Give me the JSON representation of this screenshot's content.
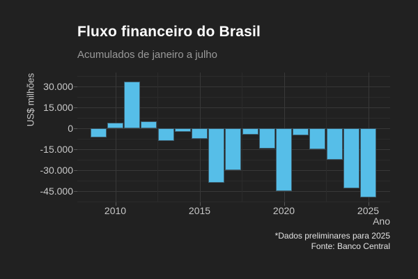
{
  "header": {
    "title": "Fluxo financeiro do Brasil",
    "subtitle": "Acumulados de janeiro a julho"
  },
  "footer": {
    "note": "*Dados preliminares para 2025",
    "source": "Fonte: Banco Central"
  },
  "chart_data": {
    "type": "bar",
    "title": "Fluxo financeiro do Brasil",
    "subtitle": "Acumulados de janeiro a julho",
    "xlabel": "Ano",
    "ylabel": "US$ milhões",
    "unit": "US$ milhões",
    "categories": [
      2009,
      2010,
      2011,
      2012,
      2013,
      2014,
      2015,
      2016,
      2017,
      2018,
      2019,
      2020,
      2021,
      2022,
      2023,
      2024,
      2025
    ],
    "values": [
      -6300,
      3800,
      33500,
      4900,
      -8900,
      -2600,
      -7300,
      -38900,
      -30100,
      -4500,
      -14300,
      -44900,
      -4800,
      -14900,
      -22400,
      -43200,
      -49500
    ],
    "x_ticks": [
      2010,
      2015,
      2020,
      2025
    ],
    "x_tick_labels": [
      "2010",
      "2015",
      "2020",
      "2025"
    ],
    "y_ticks": [
      30000,
      15000,
      0,
      -15000,
      -30000,
      -45000
    ],
    "y_tick_labels": [
      "30.000",
      "15.000",
      "0",
      "-15.000",
      "-30.000",
      "-45.000"
    ],
    "y_minor_step": 7500,
    "xlim": [
      2007.75,
      2026.3
    ],
    "ylim": [
      -53000,
      40000
    ],
    "grid": true,
    "legend": false,
    "bar_width_years": 0.95,
    "colors": {
      "background": "#212121",
      "bar_fill": "#56BEE8",
      "bar_border": "#3D5F70",
      "grid_major": "#383838",
      "grid_minor": "#2b2b2b",
      "title_text": "#ffffff",
      "subtitle_text": "#9a9a9a",
      "tick_text": "#c8c8c8",
      "footer_text": "#e3e3e3"
    },
    "annotations": [
      "*Dados preliminares para 2025",
      "Fonte: Banco Central"
    ]
  }
}
